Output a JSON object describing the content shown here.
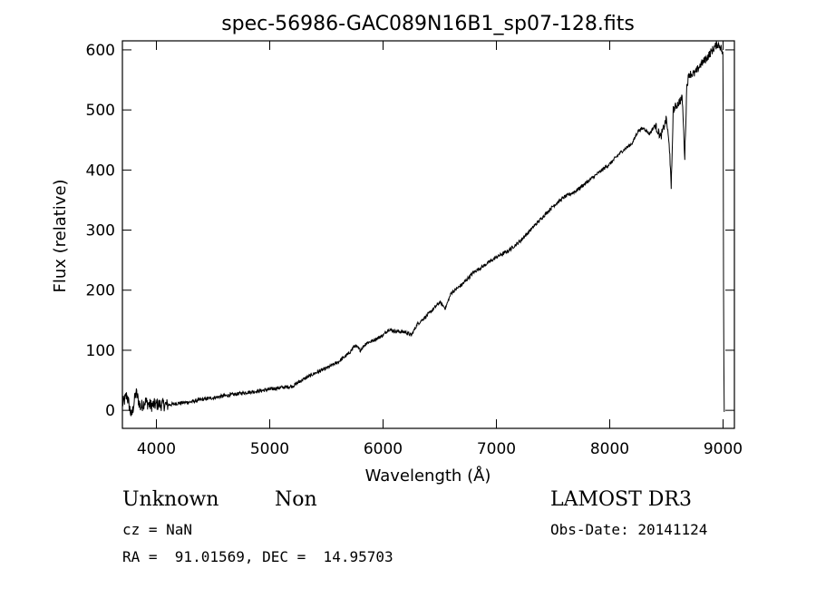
{
  "chart_data": {
    "type": "line",
    "title": "spec-56986-GAC089N16B1_sp07-128.fits",
    "xlabel": "Wavelength (Å)",
    "ylabel": "Flux (relative)",
    "xlim": [
      3700,
      9100
    ],
    "ylim": [
      -30,
      615
    ],
    "x_ticks": [
      4000,
      5000,
      6000,
      7000,
      8000,
      9000
    ],
    "y_ticks": [
      0,
      100,
      200,
      300,
      400,
      500,
      600
    ],
    "series": [
      {
        "x": [
          3700,
          3740,
          3780,
          3820,
          3860,
          3900,
          3950,
          4000,
          4100,
          4200,
          4300,
          4400,
          4500,
          4600,
          4700,
          4800,
          4900,
          5000,
          5100,
          5200,
          5300,
          5400,
          5500,
          5600,
          5700,
          5750,
          5800,
          5850,
          5900,
          6000,
          6050,
          6100,
          6200,
          6250,
          6300,
          6400,
          6500,
          6550,
          6600,
          6700,
          6800,
          6900,
          7000,
          7100,
          7200,
          7300,
          7400,
          7500,
          7600,
          7700,
          7800,
          7900,
          8000,
          8100,
          8200,
          8250,
          8300,
          8350,
          8400,
          8450,
          8500,
          8530,
          8542,
          8560,
          8600,
          8640,
          8662,
          8680,
          8700,
          8750,
          8800,
          8850,
          8900,
          8950,
          8980,
          9000,
          9005,
          9010
        ],
        "y": [
          10,
          25,
          -10,
          30,
          5,
          15,
          8,
          10,
          9,
          12,
          14,
          18,
          21,
          24,
          27,
          30,
          32,
          35,
          38,
          40,
          52,
          62,
          70,
          80,
          95,
          108,
          100,
          112,
          115,
          125,
          135,
          132,
          130,
          125,
          143,
          160,
          180,
          170,
          195,
          210,
          230,
          242,
          255,
          265,
          280,
          300,
          320,
          340,
          355,
          365,
          380,
          395,
          410,
          430,
          445,
          465,
          470,
          460,
          475,
          455,
          485,
          430,
          365,
          500,
          510,
          520,
          420,
          540,
          560,
          560,
          575,
          585,
          598,
          610,
          605,
          590,
          120,
          0
        ]
      }
    ]
  },
  "footer": {
    "object_class": "Unknown",
    "subclass": "Non",
    "survey": "LAMOST DR3",
    "cz": "cz = NaN",
    "obs_date": "Obs-Date: 20141124",
    "coords": "RA =  91.01569, DEC =  14.95703"
  }
}
